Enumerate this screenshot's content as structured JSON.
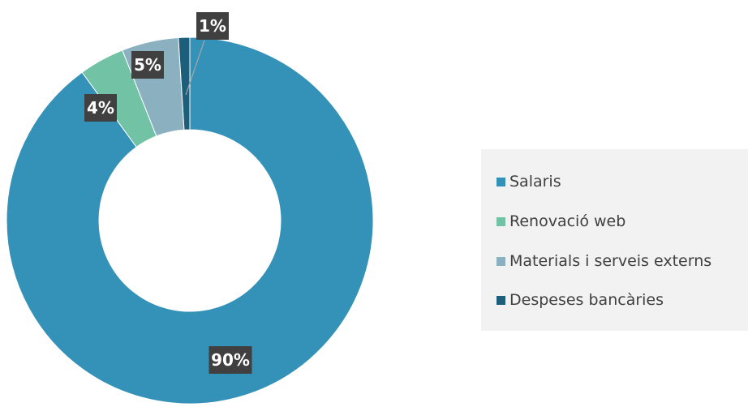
{
  "chart_data": {
    "type": "donut",
    "title": "",
    "slices": [
      {
        "name": "Salaris",
        "value": 90,
        "label": "90%",
        "color": "#3491b7"
      },
      {
        "name": "Renovació web",
        "value": 4,
        "label": "4%",
        "color": "#72c2a6"
      },
      {
        "name": "Materials i serveis externs",
        "value": 5,
        "label": "5%",
        "color": "#8bb1c0"
      },
      {
        "name": "Despeses bancàries",
        "value": 1,
        "label": "1%",
        "color": "#1d5f7a"
      }
    ],
    "legend_position": "right",
    "label_style": {
      "background": "#404040",
      "text_color": "#ffffff"
    }
  }
}
